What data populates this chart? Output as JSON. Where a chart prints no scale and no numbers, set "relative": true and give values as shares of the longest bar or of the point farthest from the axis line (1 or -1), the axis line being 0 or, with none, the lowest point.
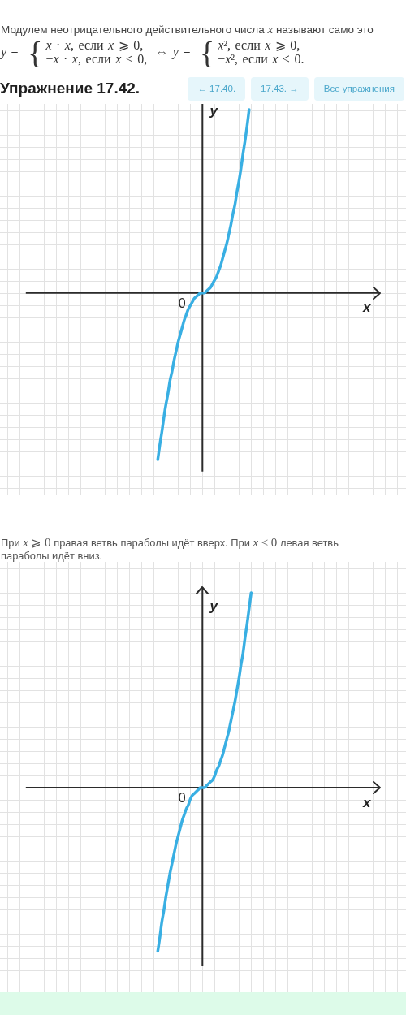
{
  "chart_data": [
    {
      "type": "other",
      "title": "Модулем неотрицательного действительного числа x называют само это",
      "annotations": [
        "y = {",
        "x · x, если x ⩾ 0,",
        "−x · x, если x < 0,",
        "⇔ y = {",
        "x², если x ⩾ 0,",
        "−x², если x < 0."
      ]
    },
    {
      "type": "other",
      "annotations": [
        "← 17.40.",
        "17.43. →",
        "Все упражнения"
      ]
    },
    {
      "type": "line",
      "title": "Упражнение 17.42.",
      "xlabel": "x",
      "ylabel": "y",
      "relative": true,
      "grid": true,
      "categories": [
        null,
        null,
        null,
        null,
        null,
        null,
        null,
        null,
        null,
        null,
        null,
        null,
        null,
        null,
        null,
        null,
        null,
        null,
        null,
        null,
        null,
        null,
        null,
        null,
        null,
        null,
        null,
        null,
        null,
        null,
        null,
        null,
        null,
        null,
        null,
        null,
        null,
        null,
        null,
        null,
        null,
        null,
        null,
        null,
        null,
        null,
        null,
        null,
        null,
        null,
        null,
        null,
        null,
        null,
        null,
        null,
        null,
        null,
        null,
        null,
        null,
        null,
        null,
        null,
        null,
        null,
        null,
        null,
        null,
        null,
        null,
        null,
        null,
        null,
        null,
        null,
        null,
        null,
        null,
        null,
        null,
        null,
        null,
        null,
        null,
        null,
        null,
        null,
        null,
        null,
        null,
        null,
        null,
        null,
        null,
        null,
        null,
        null,
        null,
        null,
        null,
        null,
        null,
        null,
        null,
        null,
        null,
        null,
        null,
        null,
        null,
        null,
        null,
        null,
        null,
        null,
        null,
        null,
        null,
        null,
        null,
        null,
        null,
        null,
        null,
        null,
        null,
        null,
        null,
        null,
        null,
        null,
        null,
        null,
        null,
        null,
        null,
        null,
        null,
        null,
        null,
        null,
        null,
        null,
        null,
        null,
        null,
        null,
        null,
        null,
        null,
        null,
        null,
        null,
        null,
        null,
        null,
        null,
        null,
        null,
        null,
        null,
        null,
        null,
        null,
        null,
        null,
        null,
        null,
        null,
        null,
        null,
        null,
        null,
        null
      ],
      "series": [
        {
          "color": "#39afe3",
          "values": [
            null,
            null,
            null,
            null,
            null,
            null,
            null,
            null,
            null,
            null,
            null,
            null,
            null,
            null,
            null,
            null,
            null,
            null,
            null,
            null,
            null,
            null,
            null,
            null,
            null,
            null,
            null,
            null,
            null,
            null,
            null,
            null,
            null,
            null,
            null,
            null,
            null,
            null,
            null,
            null,
            null,
            null,
            null,
            null,
            null,
            null,
            null,
            null,
            null,
            null,
            null,
            null,
            null,
            null,
            null,
            null,
            null,
            null,
            null,
            null,
            null,
            null,
            null,
            null,
            null,
            -0.91,
            -0.83,
            -0.76,
            -0.68,
            -0.61,
            -0.55,
            -0.48,
            -0.43,
            -0.37,
            -0.32,
            -0.27,
            -0.23,
            -0.19,
            -0.15,
            -0.12,
            -0.09,
            -0.07,
            -0.05,
            -0.03,
            -0.02,
            -0.01,
            0,
            0,
            0,
            0.01,
            0.02,
            0.03,
            0.05,
            0.07,
            0.09,
            0.12,
            0.15,
            0.19,
            0.23,
            0.27,
            0.32,
            0.37,
            0.43,
            0.48,
            0.55,
            0.61,
            0.68,
            0.76,
            0.83,
            0.91,
            1,
            null,
            null,
            null,
            null,
            null,
            null,
            null,
            null,
            null,
            null,
            null,
            null,
            null,
            null,
            null,
            null,
            null,
            null,
            null,
            null,
            null,
            null,
            null,
            null,
            null,
            null,
            null,
            null,
            null,
            null,
            null,
            null,
            null,
            null,
            null,
            null,
            null,
            null,
            null,
            null,
            null,
            null,
            null,
            null,
            null,
            null,
            null,
            null,
            null,
            null,
            null,
            null,
            null,
            null,
            null,
            null,
            null,
            null,
            null,
            null,
            null,
            null,
            null,
            null
          ]
        }
      ],
      "annotations": [
        "0"
      ]
    },
    {
      "type": "line",
      "title": "При x ⩾ 0 правая ветвь параболы идёт вверх. При x < 0 левая ветвь параболы идёт вниз.",
      "xlabel": "x",
      "ylabel": "y",
      "relative": true,
      "grid": true,
      "categories": [
        null,
        null,
        null,
        null,
        null,
        null,
        null,
        null,
        null,
        null,
        null,
        null,
        null,
        null,
        null,
        null,
        null,
        null,
        null,
        null,
        null,
        null,
        null,
        null,
        null,
        null,
        null,
        null,
        null,
        null,
        null,
        null,
        null,
        null,
        null,
        null,
        null,
        null,
        null,
        null,
        null,
        null,
        null,
        null,
        null,
        null,
        null,
        null,
        null,
        null,
        null,
        null,
        null,
        null,
        null,
        null,
        null,
        null,
        null,
        null,
        null,
        null,
        null,
        null,
        null,
        null,
        null,
        null,
        null,
        null,
        null,
        null,
        null,
        null,
        null,
        null,
        null,
        null,
        null,
        null,
        null,
        null,
        null,
        null,
        null,
        null,
        null,
        null,
        null,
        null,
        null,
        null,
        null,
        null,
        null,
        null,
        null,
        null,
        null,
        null,
        null,
        null,
        null,
        null,
        null,
        null,
        null,
        null,
        null,
        null,
        null,
        null,
        null,
        null,
        null,
        null,
        null,
        null,
        null,
        null,
        null,
        null,
        null,
        null,
        null,
        null,
        null,
        null,
        null,
        null,
        null,
        null,
        null,
        null,
        null,
        null,
        null,
        null,
        null,
        null,
        null,
        null,
        null,
        null,
        null,
        null,
        null,
        null,
        null,
        null,
        null,
        null,
        null,
        null,
        null,
        null,
        null,
        null,
        null,
        null,
        null,
        null,
        null,
        null,
        null,
        null,
        null,
        null,
        null,
        null,
        null,
        null,
        null,
        null,
        null
      ],
      "series": [
        {
          "color": "#39afe3",
          "values": [
            null,
            null,
            null,
            null,
            null,
            null,
            null,
            null,
            null,
            null,
            null,
            null,
            null,
            null,
            null,
            null,
            null,
            null,
            null,
            null,
            null,
            null,
            null,
            null,
            null,
            null,
            null,
            null,
            null,
            null,
            null,
            null,
            null,
            null,
            null,
            null,
            null,
            null,
            null,
            null,
            null,
            null,
            null,
            null,
            null,
            null,
            null,
            null,
            null,
            null,
            null,
            null,
            null,
            null,
            null,
            null,
            null,
            null,
            null,
            null,
            null,
            null,
            null,
            null,
            null,
            -0.84,
            -0.77,
            -0.69,
            -0.63,
            -0.56,
            -0.5,
            -0.44,
            -0.39,
            -0.34,
            -0.29,
            -0.25,
            -0.21,
            -0.17,
            -0.14,
            -0.11,
            -0.09,
            -0.06,
            -0.04,
            -0.03,
            -0.02,
            -0.01,
            0,
            0,
            0,
            0.01,
            0.02,
            0.03,
            0.04,
            0.06,
            0.09,
            0.11,
            0.14,
            0.17,
            0.21,
            0.25,
            0.29,
            0.34,
            0.39,
            0.44,
            0.5,
            0.56,
            0.63,
            0.69,
            0.77,
            0.84,
            0.92,
            1,
            null,
            null,
            null,
            null,
            null,
            null,
            null,
            null,
            null,
            null,
            null,
            null,
            null,
            null,
            null,
            null,
            null,
            null,
            null,
            null,
            null,
            null,
            null,
            null,
            null,
            null,
            null,
            null,
            null,
            null,
            null,
            null,
            null,
            null,
            null,
            null,
            null,
            null,
            null,
            null,
            null,
            null,
            null,
            null,
            null,
            null,
            null,
            null,
            null,
            null,
            null,
            null,
            null,
            null,
            null,
            null,
            null,
            null,
            null,
            null,
            null,
            null,
            null
          ]
        }
      ],
      "annotations": [
        "0"
      ]
    }
  ]
}
